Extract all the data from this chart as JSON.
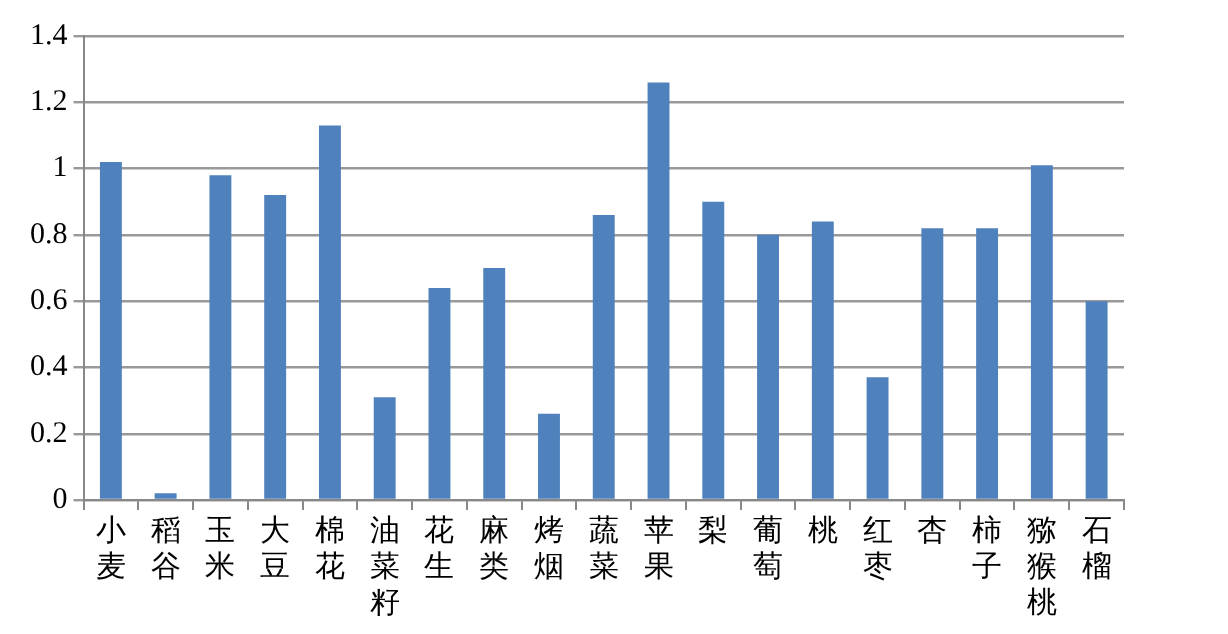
{
  "chart_data": {
    "type": "bar",
    "categories": [
      "小麦",
      "稻谷",
      "玉米",
      "大豆",
      "棉花",
      "油菜籽",
      "花生",
      "麻类",
      "烤烟",
      "蔬菜",
      "苹果",
      "梨",
      "葡萄",
      "桃",
      "红枣",
      "杏",
      "柿子",
      "猕猴桃",
      "石榴"
    ],
    "values": [
      1.02,
      0.02,
      0.98,
      0.92,
      1.13,
      0.31,
      0.64,
      0.7,
      0.26,
      0.86,
      1.26,
      0.9,
      0.8,
      0.84,
      0.37,
      0.82,
      0.82,
      1.01,
      0.6
    ],
    "color": "#4f81bd",
    "ylim": [
      0,
      1.4
    ],
    "yticks": [
      0,
      0.2,
      0.4,
      0.6,
      0.8,
      1,
      1.2,
      1.4
    ],
    "grid": "y",
    "legend": false
  }
}
